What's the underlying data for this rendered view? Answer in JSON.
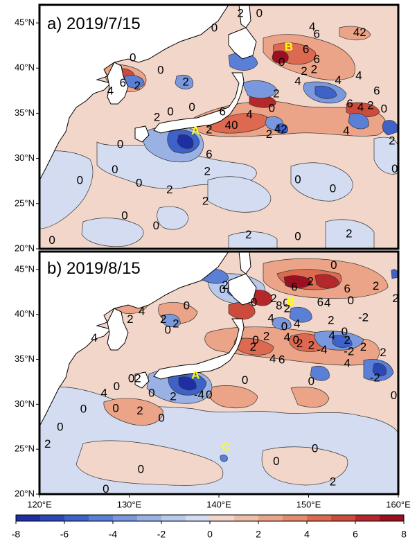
{
  "panels": [
    {
      "title": "a) 2019/7/15",
      "markers": [
        {
          "label": "A",
          "lon": 137.4,
          "lat": 33.0
        },
        {
          "label": "B",
          "lon": 147.8,
          "lat": 42.3
        }
      ],
      "contour_labels": [
        {
          "text": "0",
          "lon": 139.5,
          "lat": 44.4
        },
        {
          "text": "2",
          "lon": 142.4,
          "lat": 46.0
        },
        {
          "text": "0",
          "lon": 144.5,
          "lat": 46.0
        },
        {
          "text": "4",
          "lon": 150.4,
          "lat": 44.5
        },
        {
          "text": "6",
          "lon": 150.9,
          "lat": 43.7
        },
        {
          "text": "42",
          "lon": 155.7,
          "lat": 43.9
        },
        {
          "text": "0",
          "lon": 130.4,
          "lat": 41.1
        },
        {
          "text": "0",
          "lon": 133.5,
          "lat": 39.7
        },
        {
          "text": "2",
          "lon": 136.3,
          "lat": 38.4
        },
        {
          "text": "6",
          "lon": 129.3,
          "lat": 38.3
        },
        {
          "text": "4",
          "lon": 127.9,
          "lat": 37.4
        },
        {
          "text": "2",
          "lon": 130.9,
          "lat": 38.0
        },
        {
          "text": "0",
          "lon": 147.0,
          "lat": 40.6
        },
        {
          "text": "6",
          "lon": 149.7,
          "lat": 42.0
        },
        {
          "text": "6",
          "lon": 150.9,
          "lat": 40.9
        },
        {
          "text": "2",
          "lon": 149.5,
          "lat": 39.6
        },
        {
          "text": "2",
          "lon": 150.6,
          "lat": 39.8
        },
        {
          "text": "4",
          "lon": 148.8,
          "lat": 38.5
        },
        {
          "text": "4",
          "lon": 153.3,
          "lat": 38.6
        },
        {
          "text": "4",
          "lon": 155.6,
          "lat": 39.1
        },
        {
          "text": "6",
          "lon": 157.6,
          "lat": 37.4
        },
        {
          "text": "0",
          "lon": 158.4,
          "lat": 35.4
        },
        {
          "text": "2",
          "lon": 146.4,
          "lat": 37.1
        },
        {
          "text": "0",
          "lon": 145.9,
          "lat": 35.5
        },
        {
          "text": "4",
          "lon": 143.4,
          "lat": 34.8
        },
        {
          "text": "6",
          "lon": 140.4,
          "lat": 35.1
        },
        {
          "text": "0",
          "lon": 137.0,
          "lat": 35.6
        },
        {
          "text": "6",
          "lon": 154.6,
          "lat": 36.0
        },
        {
          "text": "4",
          "lon": 155.8,
          "lat": 35.6
        },
        {
          "text": "2",
          "lon": 156.9,
          "lat": 35.8
        },
        {
          "text": "42",
          "lon": 146.9,
          "lat": 33.2
        },
        {
          "text": "4",
          "lon": 154.2,
          "lat": 33.0
        },
        {
          "text": "40",
          "lon": 141.4,
          "lat": 33.6
        },
        {
          "text": "2",
          "lon": 138.9,
          "lat": 33.1
        },
        {
          "text": "2",
          "lon": 133.1,
          "lat": 34.5
        },
        {
          "text": "0",
          "lon": 134.6,
          "lat": 35.1
        },
        {
          "text": "2",
          "lon": 145.6,
          "lat": 32.6
        },
        {
          "text": "6",
          "lon": 138.9,
          "lat": 30.4
        },
        {
          "text": "2",
          "lon": 138.7,
          "lat": 28.5
        },
        {
          "text": "0",
          "lon": 129.0,
          "lat": 31.5
        },
        {
          "text": "0",
          "lon": 128.4,
          "lat": 28.7
        },
        {
          "text": "0",
          "lon": 131.1,
          "lat": 27.2
        },
        {
          "text": "0",
          "lon": 124.5,
          "lat": 27.5
        },
        {
          "text": "2",
          "lon": 134.5,
          "lat": 26.5
        },
        {
          "text": "2",
          "lon": 138.5,
          "lat": 25.2
        },
        {
          "text": "0",
          "lon": 148.8,
          "lat": 27.6
        },
        {
          "text": "0",
          "lon": 152.7,
          "lat": 26.6
        },
        {
          "text": "0",
          "lon": 159.6,
          "lat": 28.8
        },
        {
          "text": "2",
          "lon": 159.3,
          "lat": 31.9
        },
        {
          "text": "0",
          "lon": 129.5,
          "lat": 23.6
        },
        {
          "text": "0",
          "lon": 133.0,
          "lat": 22.5
        },
        {
          "text": "2",
          "lon": 143.3,
          "lat": 21.5
        },
        {
          "text": "0",
          "lon": 148.8,
          "lat": 21.3
        },
        {
          "text": "2",
          "lon": 154.5,
          "lat": 21.6
        },
        {
          "text": "0",
          "lon": 121.4,
          "lat": 20.9
        }
      ]
    },
    {
      "title": "b) 2019/8/15",
      "markers": [
        {
          "label": "A",
          "lon": 137.4,
          "lat": 33.2
        },
        {
          "label": "B",
          "lon": 148.0,
          "lat": 41.4
        },
        {
          "label": "C",
          "lon": 140.8,
          "lat": 25.2
        }
      ],
      "contour_labels": [
        {
          "text": "0",
          "lon": 152.8,
          "lat": 45.4
        },
        {
          "text": "2",
          "lon": 140.7,
          "lat": 43.2
        },
        {
          "text": "0",
          "lon": 140.4,
          "lat": 42.7
        },
        {
          "text": "6",
          "lon": 148.4,
          "lat": 43.0
        },
        {
          "text": "2",
          "lon": 150.2,
          "lat": 43.6
        },
        {
          "text": "6",
          "lon": 154.3,
          "lat": 42.8
        },
        {
          "text": "2",
          "lon": 157.5,
          "lat": 43.1
        },
        {
          "text": "0",
          "lon": 143.9,
          "lat": 41.3
        },
        {
          "text": "2",
          "lon": 146.1,
          "lat": 41.7
        },
        {
          "text": "8",
          "lon": 146.7,
          "lat": 40.9
        },
        {
          "text": "0",
          "lon": 147.5,
          "lat": 41.2
        },
        {
          "text": "2",
          "lon": 147.6,
          "lat": 40.6
        },
        {
          "text": "6",
          "lon": 151.3,
          "lat": 41.3
        },
        {
          "text": "4",
          "lon": 152.1,
          "lat": 41.2
        },
        {
          "text": "0",
          "lon": 154.7,
          "lat": 41.5
        },
        {
          "text": "2",
          "lon": 159.7,
          "lat": 41.7
        },
        {
          "text": "4",
          "lon": 131.4,
          "lat": 40.3
        },
        {
          "text": "0",
          "lon": 136.4,
          "lat": 40.9
        },
        {
          "text": "2",
          "lon": 130.1,
          "lat": 39.4
        },
        {
          "text": "2",
          "lon": 133.8,
          "lat": 39.4
        },
        {
          "text": "2",
          "lon": 135.2,
          "lat": 38.9
        },
        {
          "text": "0",
          "lon": 134.3,
          "lat": 38.2
        },
        {
          "text": "4",
          "lon": 126.1,
          "lat": 37.3
        },
        {
          "text": "4",
          "lon": 145.8,
          "lat": 39.5
        },
        {
          "text": "0",
          "lon": 147.3,
          "lat": 38.6
        },
        {
          "text": "4",
          "lon": 148.7,
          "lat": 38.9
        },
        {
          "text": "2",
          "lon": 152.5,
          "lat": 39.3
        },
        {
          "text": "-2",
          "lon": 156.1,
          "lat": 39.6
        },
        {
          "text": "0",
          "lon": 154.0,
          "lat": 38.0
        },
        {
          "text": "4",
          "lon": 152.6,
          "lat": 37.6
        },
        {
          "text": "2",
          "lon": 154.3,
          "lat": 37.1
        },
        {
          "text": "2",
          "lon": 145.3,
          "lat": 37.5
        },
        {
          "text": "2",
          "lon": 150.3,
          "lat": 36.5
        },
        {
          "text": "0",
          "lon": 148.6,
          "lat": 37.1
        },
        {
          "text": "4",
          "lon": 147.6,
          "lat": 37.4
        },
        {
          "text": "2",
          "lon": 143.8,
          "lat": 36.3
        },
        {
          "text": "0",
          "lon": 144.1,
          "lat": 37.1
        },
        {
          "text": "-4",
          "lon": 151.5,
          "lat": 36.0
        },
        {
          "text": "-2",
          "lon": 154.5,
          "lat": 35.8
        },
        {
          "text": "2",
          "lon": 156.1,
          "lat": 36.3
        },
        {
          "text": "2",
          "lon": 149.0,
          "lat": 36.7
        },
        {
          "text": "4",
          "lon": 146.0,
          "lat": 35.0
        },
        {
          "text": "6",
          "lon": 147.0,
          "lat": 34.9
        },
        {
          "text": "4",
          "lon": 154.3,
          "lat": 34.5
        },
        {
          "text": "2",
          "lon": 158.3,
          "lat": 35.7
        },
        {
          "text": "-2",
          "lon": 157.4,
          "lat": 32.9
        },
        {
          "text": "0",
          "lon": 159.5,
          "lat": 30.9
        },
        {
          "text": "0",
          "lon": 150.3,
          "lat": 32.5
        },
        {
          "text": "0",
          "lon": 142.9,
          "lat": 32.6
        },
        {
          "text": "-4",
          "lon": 137.8,
          "lat": 31.0
        },
        {
          "text": "0",
          "lon": 138.9,
          "lat": 31.0
        },
        {
          "text": "02",
          "lon": 130.6,
          "lat": 32.8
        },
        {
          "text": "0",
          "lon": 128.6,
          "lat": 31.9
        },
        {
          "text": "0",
          "lon": 132.5,
          "lat": 31.2
        },
        {
          "text": "0",
          "lon": 128.5,
          "lat": 29.5
        },
        {
          "text": "2",
          "lon": 134.9,
          "lat": 30.8
        },
        {
          "text": "2",
          "lon": 131.2,
          "lat": 29.2
        },
        {
          "text": "4",
          "lon": 127.2,
          "lat": 31.2
        },
        {
          "text": "0",
          "lon": 124.9,
          "lat": 29.4
        },
        {
          "text": "0",
          "lon": 133.6,
          "lat": 28.4
        },
        {
          "text": "0",
          "lon": 122.3,
          "lat": 27.4
        },
        {
          "text": "2",
          "lon": 120.9,
          "lat": 25.5
        },
        {
          "text": "0",
          "lon": 150.7,
          "lat": 25.0
        },
        {
          "text": "0",
          "lon": 146.4,
          "lat": 23.6
        },
        {
          "text": "0",
          "lon": 131.3,
          "lat": 22.7
        },
        {
          "text": "0",
          "lon": 127.4,
          "lat": 20.5
        },
        {
          "text": "2",
          "lon": 152.7,
          "lat": 21.3
        }
      ]
    }
  ],
  "map": {
    "lon_range": [
      120,
      160
    ],
    "lat_range": [
      20,
      47
    ],
    "lat_ticks": [
      {
        "value": 20,
        "label": "20°N"
      },
      {
        "value": 25,
        "label": "25°N"
      },
      {
        "value": 30,
        "label": "30°N"
      },
      {
        "value": 35,
        "label": "35°N"
      },
      {
        "value": 40,
        "label": "40°N"
      },
      {
        "value": 45,
        "label": "45°N"
      }
    ],
    "lon_ticks": [
      {
        "value": 120,
        "label": "120°E"
      },
      {
        "value": 130,
        "label": "130°E"
      },
      {
        "value": 140,
        "label": "140°E"
      },
      {
        "value": 150,
        "label": "150°E"
      },
      {
        "value": 160,
        "label": "160°E"
      }
    ],
    "land_color": "#ffffff",
    "marker_color": "#ffff00",
    "coastline_color": "#000000"
  },
  "colorbar": {
    "bounds": [
      -8,
      -7,
      -6,
      -5,
      -4,
      -3,
      -2,
      -1,
      0,
      1,
      2,
      3,
      4,
      5,
      6,
      7,
      8
    ],
    "colors": [
      "#1e2fa3",
      "#2c48b4",
      "#3e62c7",
      "#5a7fd6",
      "#7a98dd",
      "#9ab1e4",
      "#b8c9ec",
      "#d3dcf1",
      "#f3d6ca",
      "#efbea9",
      "#eba487",
      "#e58a6a",
      "#dd6a50",
      "#cc4b3a",
      "#b4282b",
      "#9a1020"
    ],
    "tick_labels": [
      "-8",
      "-6",
      "-4",
      "-2",
      "0",
      "2",
      "4",
      "6",
      "8"
    ]
  }
}
